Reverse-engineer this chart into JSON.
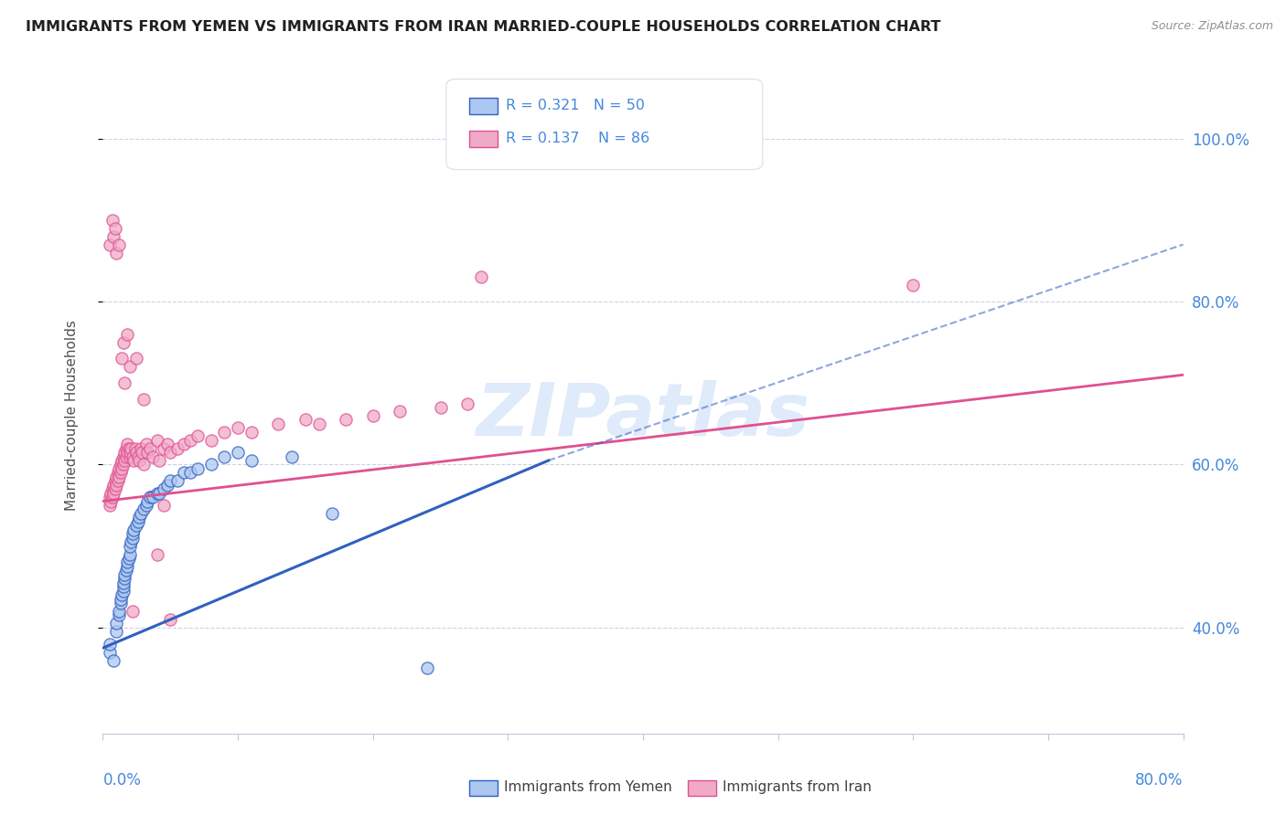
{
  "title": "IMMIGRANTS FROM YEMEN VS IMMIGRANTS FROM IRAN MARRIED-COUPLE HOUSEHOLDS CORRELATION CHART",
  "source": "Source: ZipAtlas.com",
  "ylabel": "Married-couple Households",
  "yticks_right": [
    "40.0%",
    "60.0%",
    "80.0%",
    "100.0%"
  ],
  "yticks_right_vals": [
    0.4,
    0.6,
    0.8,
    1.0
  ],
  "xlim": [
    0.0,
    0.8
  ],
  "ylim": [
    0.27,
    1.05
  ],
  "legend_r_yemen": "R = 0.321",
  "legend_n_yemen": "N = 50",
  "legend_r_iran": "R = 0.137",
  "legend_n_iran": "N = 86",
  "legend_label_yemen": "Immigrants from Yemen",
  "legend_label_iran": "Immigrants from Iran",
  "color_yemen_fill": "#adc8f0",
  "color_iran_fill": "#f0aac8",
  "color_trend_yemen": "#3060c0",
  "color_trend_iran": "#e05090",
  "color_text_blue": "#4488dd",
  "watermark": "ZIPatlas",
  "yemen_scatter_x": [
    0.005,
    0.005,
    0.008,
    0.01,
    0.01,
    0.012,
    0.012,
    0.013,
    0.013,
    0.014,
    0.015,
    0.015,
    0.015,
    0.016,
    0.016,
    0.017,
    0.018,
    0.018,
    0.019,
    0.02,
    0.02,
    0.021,
    0.022,
    0.022,
    0.023,
    0.025,
    0.026,
    0.027,
    0.028,
    0.03,
    0.032,
    0.033,
    0.035,
    0.037,
    0.04,
    0.042,
    0.045,
    0.048,
    0.05,
    0.055,
    0.06,
    0.065,
    0.07,
    0.08,
    0.09,
    0.1,
    0.11,
    0.14,
    0.17,
    0.24
  ],
  "yemen_scatter_y": [
    0.37,
    0.38,
    0.36,
    0.395,
    0.405,
    0.415,
    0.42,
    0.43,
    0.435,
    0.44,
    0.445,
    0.45,
    0.455,
    0.46,
    0.465,
    0.47,
    0.475,
    0.48,
    0.485,
    0.49,
    0.5,
    0.505,
    0.51,
    0.515,
    0.52,
    0.525,
    0.53,
    0.535,
    0.54,
    0.545,
    0.55,
    0.555,
    0.56,
    0.56,
    0.565,
    0.565,
    0.57,
    0.575,
    0.58,
    0.58,
    0.59,
    0.59,
    0.595,
    0.6,
    0.61,
    0.615,
    0.605,
    0.61,
    0.54,
    0.35
  ],
  "iran_scatter_x": [
    0.005,
    0.005,
    0.006,
    0.006,
    0.007,
    0.007,
    0.008,
    0.008,
    0.009,
    0.009,
    0.01,
    0.01,
    0.011,
    0.011,
    0.012,
    0.012,
    0.013,
    0.013,
    0.014,
    0.014,
    0.015,
    0.015,
    0.016,
    0.016,
    0.017,
    0.017,
    0.018,
    0.018,
    0.019,
    0.02,
    0.02,
    0.021,
    0.022,
    0.023,
    0.024,
    0.025,
    0.026,
    0.027,
    0.028,
    0.029,
    0.03,
    0.032,
    0.033,
    0.035,
    0.037,
    0.04,
    0.042,
    0.045,
    0.048,
    0.05,
    0.055,
    0.06,
    0.065,
    0.07,
    0.08,
    0.09,
    0.1,
    0.11,
    0.13,
    0.15,
    0.16,
    0.18,
    0.2,
    0.22,
    0.25,
    0.27,
    0.005,
    0.008,
    0.01,
    0.012,
    0.015,
    0.018,
    0.02,
    0.025,
    0.03,
    0.035,
    0.04,
    0.045,
    0.05,
    0.28,
    0.007,
    0.009,
    0.014,
    0.016,
    0.022,
    0.6
  ],
  "iran_scatter_y": [
    0.55,
    0.56,
    0.555,
    0.565,
    0.56,
    0.57,
    0.565,
    0.575,
    0.57,
    0.58,
    0.575,
    0.585,
    0.58,
    0.59,
    0.585,
    0.595,
    0.59,
    0.6,
    0.595,
    0.605,
    0.6,
    0.61,
    0.605,
    0.615,
    0.61,
    0.62,
    0.615,
    0.625,
    0.62,
    0.61,
    0.615,
    0.62,
    0.61,
    0.605,
    0.62,
    0.615,
    0.61,
    0.605,
    0.62,
    0.615,
    0.6,
    0.625,
    0.615,
    0.62,
    0.61,
    0.63,
    0.605,
    0.62,
    0.625,
    0.615,
    0.62,
    0.625,
    0.63,
    0.635,
    0.63,
    0.64,
    0.645,
    0.64,
    0.65,
    0.655,
    0.65,
    0.655,
    0.66,
    0.665,
    0.67,
    0.675,
    0.87,
    0.88,
    0.86,
    0.87,
    0.75,
    0.76,
    0.72,
    0.73,
    0.68,
    0.56,
    0.49,
    0.55,
    0.41,
    0.83,
    0.9,
    0.89,
    0.73,
    0.7,
    0.42,
    0.82
  ],
  "trend_yemen_x0": 0.0,
  "trend_yemen_y0": 0.375,
  "trend_yemen_x1": 0.33,
  "trend_yemen_y1": 0.605,
  "trend_iran_x0": 0.0,
  "trend_iran_y0": 0.555,
  "trend_iran_x1": 0.8,
  "trend_iran_y1": 0.71,
  "trend_yemen_dashed_x0": 0.33,
  "trend_yemen_dashed_y0": 0.605,
  "trend_yemen_dashed_x1": 0.8,
  "trend_yemen_dashed_y1": 0.87
}
